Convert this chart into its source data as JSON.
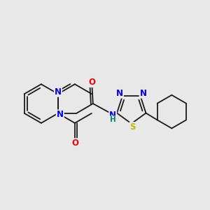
{
  "bg_color": "#e8e8e8",
  "bond_color": "#1a1a1a",
  "N_color": "#0000ee",
  "O_color": "#ee0000",
  "S_color": "#bbbb00",
  "NH_color": "#008866",
  "bond_width": 1.3,
  "dpi": 100,
  "figsize": [
    3.0,
    3.0
  ],
  "xlim": [
    0,
    300
  ],
  "ylim": [
    0,
    300
  ]
}
